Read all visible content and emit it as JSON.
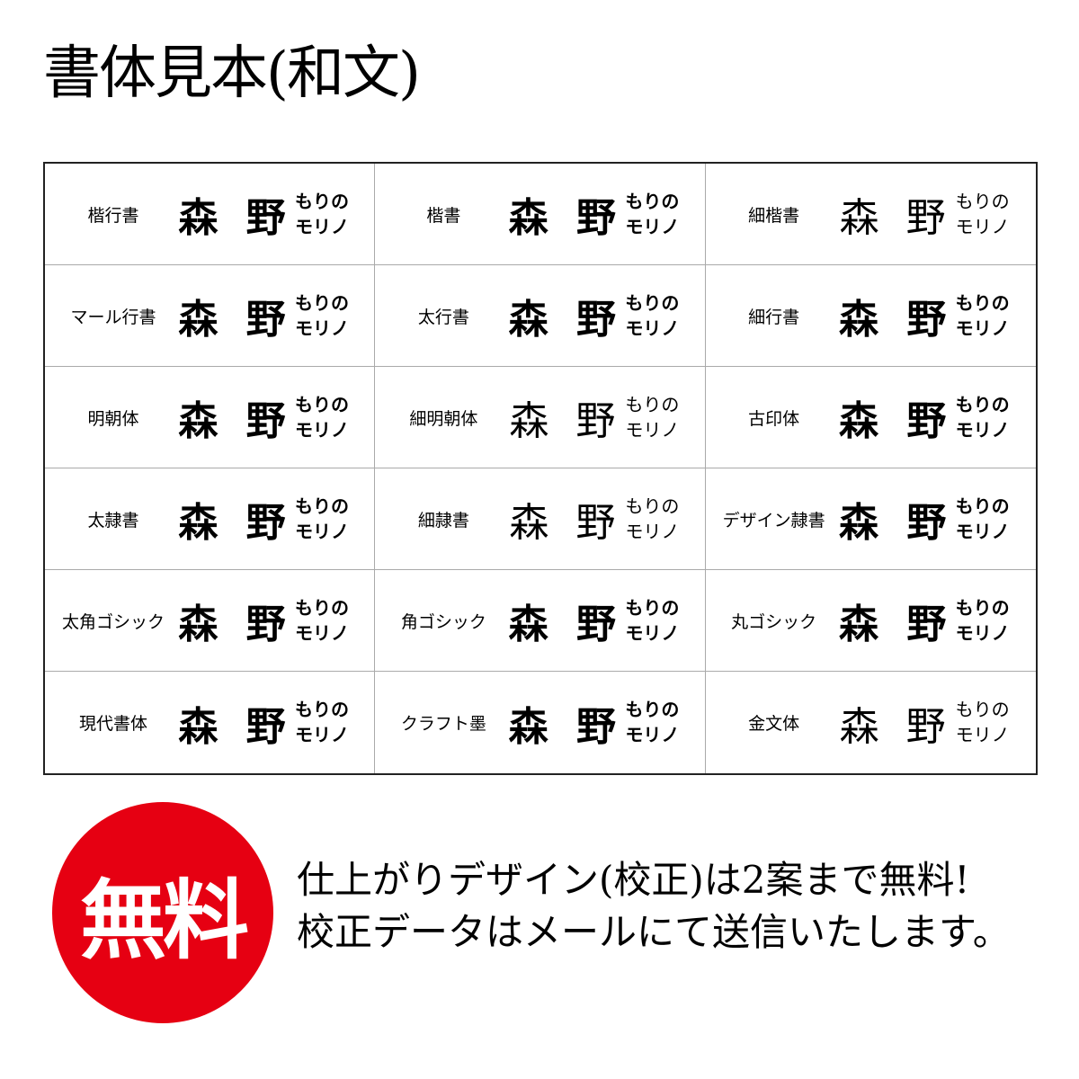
{
  "title": "書体見本(和文)",
  "sample": {
    "kanji": "森 野",
    "hiragana": "もりの",
    "katakana": "モリノ"
  },
  "fonts": [
    {
      "label": "楷行書",
      "weight": "bold"
    },
    {
      "label": "楷書",
      "weight": "bold"
    },
    {
      "label": "細楷書",
      "weight": "thin"
    },
    {
      "label": "マール行書",
      "weight": "bold"
    },
    {
      "label": "太行書",
      "weight": "bold"
    },
    {
      "label": "細行書",
      "weight": "bold"
    },
    {
      "label": "明朝体",
      "weight": "bold"
    },
    {
      "label": "細明朝体",
      "weight": "thin"
    },
    {
      "label": "古印体",
      "weight": "bold"
    },
    {
      "label": "太隷書",
      "weight": "bold"
    },
    {
      "label": "細隷書",
      "weight": "thin"
    },
    {
      "label": "デザイン隷書",
      "weight": "bold"
    },
    {
      "label": "太角ゴシック",
      "weight": "bold"
    },
    {
      "label": "角ゴシック",
      "weight": "bold"
    },
    {
      "label": "丸ゴシック",
      "weight": "bold"
    },
    {
      "label": "現代書体",
      "weight": "bold"
    },
    {
      "label": "クラフト墨",
      "weight": "bold"
    },
    {
      "label": "金文体",
      "weight": "thin"
    }
  ],
  "badge": {
    "text": "無料",
    "color": "#e60012"
  },
  "note": {
    "line1": "仕上がりデザイン(校正)は2案まで無料!",
    "line2": "校正データはメールにて送信いたします。"
  }
}
